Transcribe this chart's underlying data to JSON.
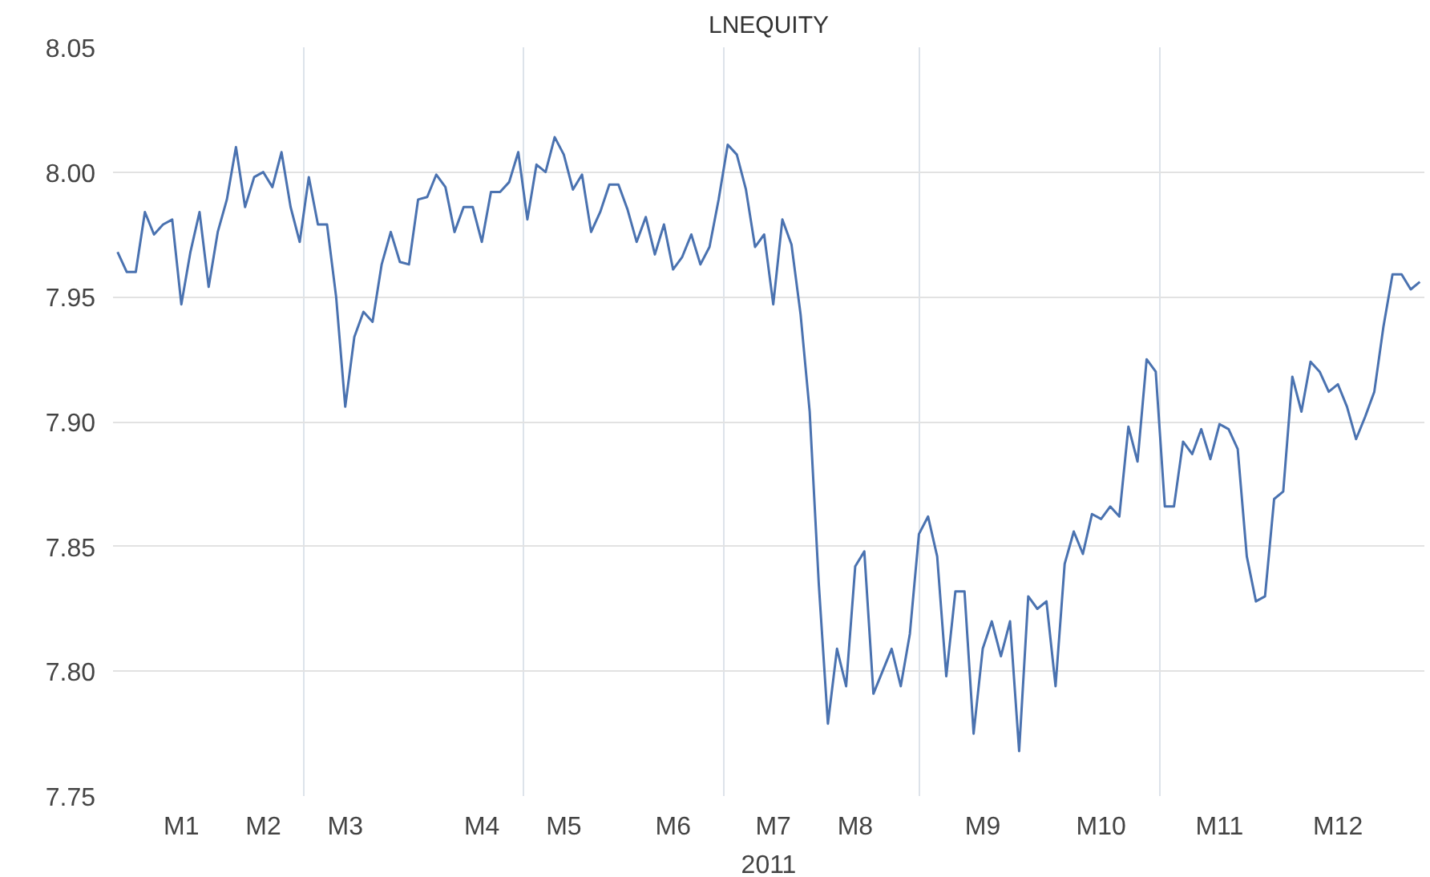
{
  "chart_data": {
    "type": "line",
    "title": "LNEQUITY",
    "xlabel": "2011",
    "categories": [
      null,
      null,
      null,
      null,
      null,
      null,
      null,
      "M1",
      null,
      null,
      null,
      null,
      null,
      null,
      null,
      null,
      "M2",
      null,
      null,
      null,
      null,
      null,
      null,
      null,
      null,
      "M3",
      null,
      null,
      null,
      null,
      null,
      null,
      null,
      null,
      null,
      null,
      null,
      null,
      null,
      null,
      "M4",
      null,
      null,
      null,
      null,
      null,
      null,
      null,
      null,
      "M5",
      null,
      null,
      null,
      null,
      null,
      null,
      null,
      null,
      null,
      null,
      null,
      "M6",
      null,
      null,
      null,
      null,
      null,
      null,
      null,
      null,
      null,
      null,
      "M7",
      null,
      null,
      null,
      null,
      null,
      null,
      null,
      null,
      "M8",
      null,
      null,
      null,
      null,
      null,
      null,
      null,
      null,
      null,
      null,
      null,
      null,
      null,
      "M9",
      null,
      null,
      null,
      null,
      null,
      null,
      null,
      null,
      null,
      null,
      null,
      null,
      "M10",
      null,
      null,
      null,
      null,
      null,
      null,
      null,
      null,
      null,
      null,
      null,
      null,
      "M11",
      null,
      null,
      null,
      null,
      null,
      null,
      null,
      null,
      null,
      null,
      null,
      null,
      "M12",
      null,
      null,
      null,
      null,
      null,
      null,
      null,
      null,
      null
    ],
    "ylim": [
      7.75,
      8.05
    ],
    "yticks": [
      {
        "value": 7.75,
        "label": "7.75"
      },
      {
        "value": 7.8,
        "label": "7.80"
      },
      {
        "value": 7.85,
        "label": "7.85"
      },
      {
        "value": 7.9,
        "label": "7.90"
      },
      {
        "value": 7.95,
        "label": "7.95"
      },
      {
        "value": 8.0,
        "label": "8.00"
      },
      {
        "value": 8.05,
        "label": "8.05"
      }
    ],
    "grid": true,
    "marker": "none",
    "line_style": "solid",
    "series": [
      {
        "color": "#4a72b0",
        "values": [
          7.968,
          7.96,
          7.96,
          7.984,
          7.975,
          7.979,
          7.981,
          7.947,
          7.968,
          7.984,
          7.954,
          7.976,
          7.989,
          8.01,
          7.986,
          7.998,
          8.0,
          7.994,
          8.008,
          7.986,
          7.972,
          7.998,
          7.979,
          7.979,
          7.95,
          7.906,
          7.934,
          7.944,
          7.94,
          7.963,
          7.976,
          7.964,
          7.963,
          7.989,
          7.99,
          7.999,
          7.994,
          7.976,
          7.986,
          7.986,
          7.972,
          7.992,
          7.992,
          7.996,
          8.008,
          7.981,
          8.003,
          8.0,
          8.014,
          8.007,
          7.993,
          7.999,
          7.976,
          7.984,
          7.995,
          7.995,
          7.985,
          7.972,
          7.982,
          7.967,
          7.979,
          7.961,
          7.966,
          7.975,
          7.963,
          7.97,
          7.989,
          8.011,
          8.007,
          7.993,
          7.97,
          7.975,
          7.947,
          7.981,
          7.971,
          7.943,
          7.904,
          7.835,
          7.779,
          7.809,
          7.794,
          7.842,
          7.848,
          7.791,
          7.8,
          7.809,
          7.794,
          7.815,
          7.855,
          7.862,
          7.846,
          7.798,
          7.832,
          7.832,
          7.775,
          7.809,
          7.82,
          7.806,
          7.82,
          7.768,
          7.83,
          7.825,
          7.828,
          7.794,
          7.843,
          7.856,
          7.847,
          7.863,
          7.861,
          7.866,
          7.862,
          7.898,
          7.884,
          7.925,
          7.92,
          7.866,
          7.866,
          7.892,
          7.887,
          7.897,
          7.885,
          7.899,
          7.897,
          7.889,
          7.846,
          7.828,
          7.83,
          7.869,
          7.872,
          7.918,
          7.904,
          7.924,
          7.92,
          7.912,
          7.915,
          7.906,
          7.893,
          7.902,
          7.912,
          7.938,
          7.959,
          7.959,
          7.953,
          7.956
        ]
      }
    ]
  }
}
